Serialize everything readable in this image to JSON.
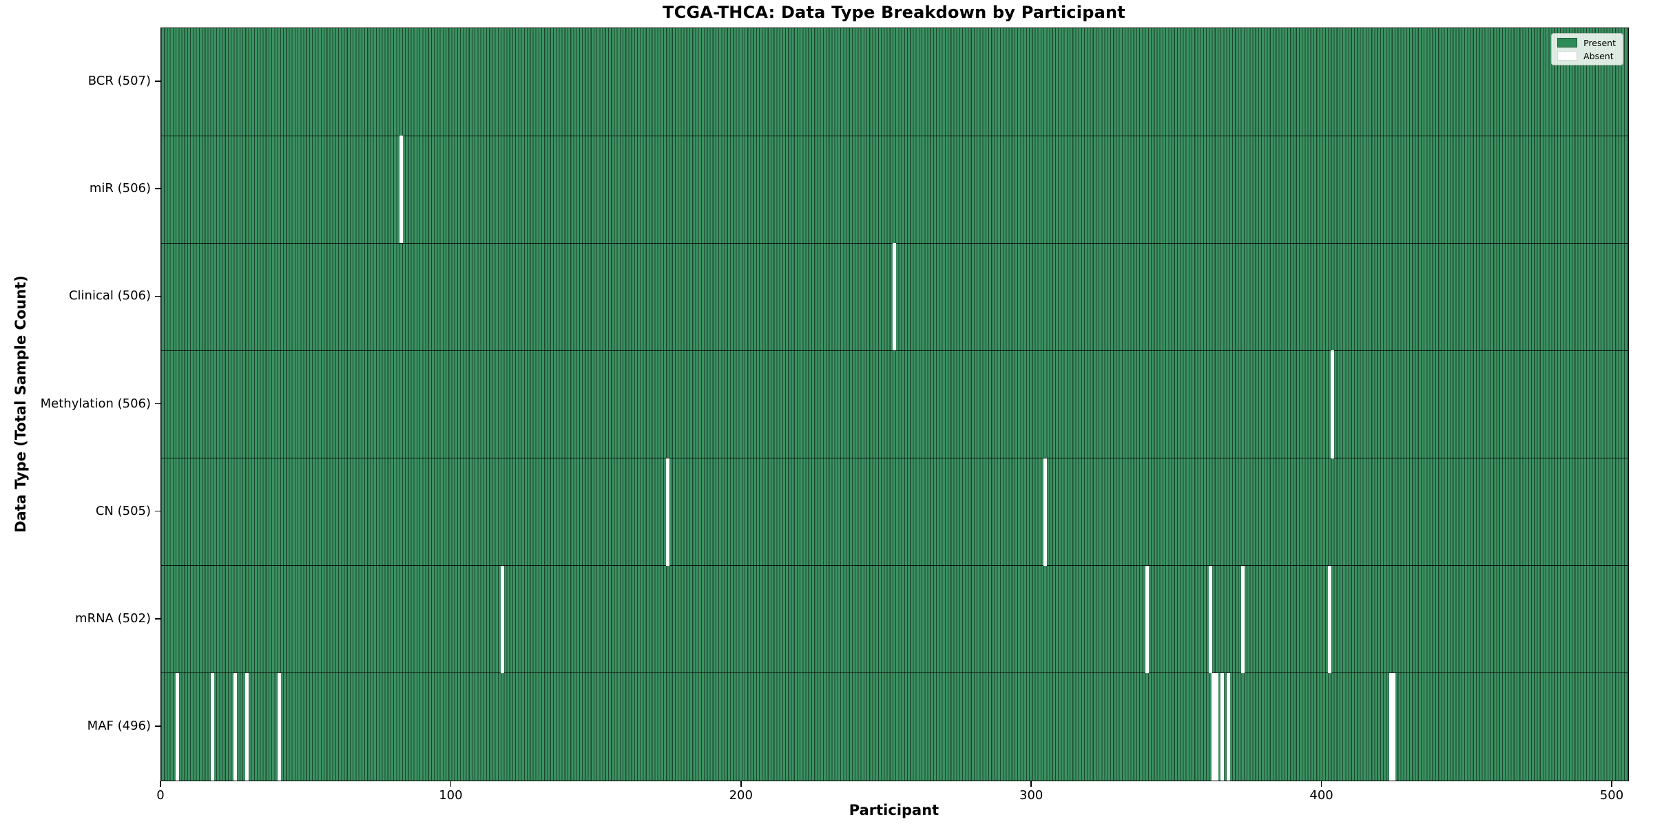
{
  "chart_data": {
    "type": "heatmap",
    "title": "TCGA-THCA: Data Type Breakdown by Participant",
    "xlabel": "Participant",
    "ylabel": "Data Type (Total Sample Count)",
    "x_ticks": [
      0,
      100,
      200,
      300,
      400,
      500
    ],
    "x_range": [
      0,
      507
    ],
    "n_participants": 507,
    "grid": false,
    "legend": {
      "position": "upper right",
      "entries": [
        {
          "label": "Present",
          "color": "#2e8b57"
        },
        {
          "label": "Absent",
          "color": "#ffffff"
        }
      ]
    },
    "colors": {
      "present_fill": "#2e8b57",
      "present_edge": "#1d4730",
      "absent_fill": "#ffffff",
      "axis": "#000000"
    },
    "rows": [
      {
        "label": "BCR (507)",
        "data_type": "BCR",
        "present_count": 507,
        "absent_participants": []
      },
      {
        "label": "miR (506)",
        "data_type": "miR",
        "present_count": 506,
        "absent_participants": [
          82
        ]
      },
      {
        "label": "Clinical (506)",
        "data_type": "Clinical",
        "present_count": 506,
        "absent_participants": [
          252
        ]
      },
      {
        "label": "Methylation (506)",
        "data_type": "Methylation",
        "present_count": 506,
        "absent_participants": [
          403
        ]
      },
      {
        "label": "CN (505)",
        "data_type": "CN",
        "present_count": 505,
        "absent_participants": [
          174,
          304
        ]
      },
      {
        "label": "mRNA (502)",
        "data_type": "mRNA",
        "present_count": 502,
        "absent_participants": [
          117,
          339,
          361,
          372,
          402
        ]
      },
      {
        "label": "MAF (496)",
        "data_type": "MAF",
        "present_count": 496,
        "absent_participants": [
          5,
          17,
          25,
          29,
          40,
          362,
          363,
          365,
          367,
          423,
          424
        ]
      }
    ]
  }
}
